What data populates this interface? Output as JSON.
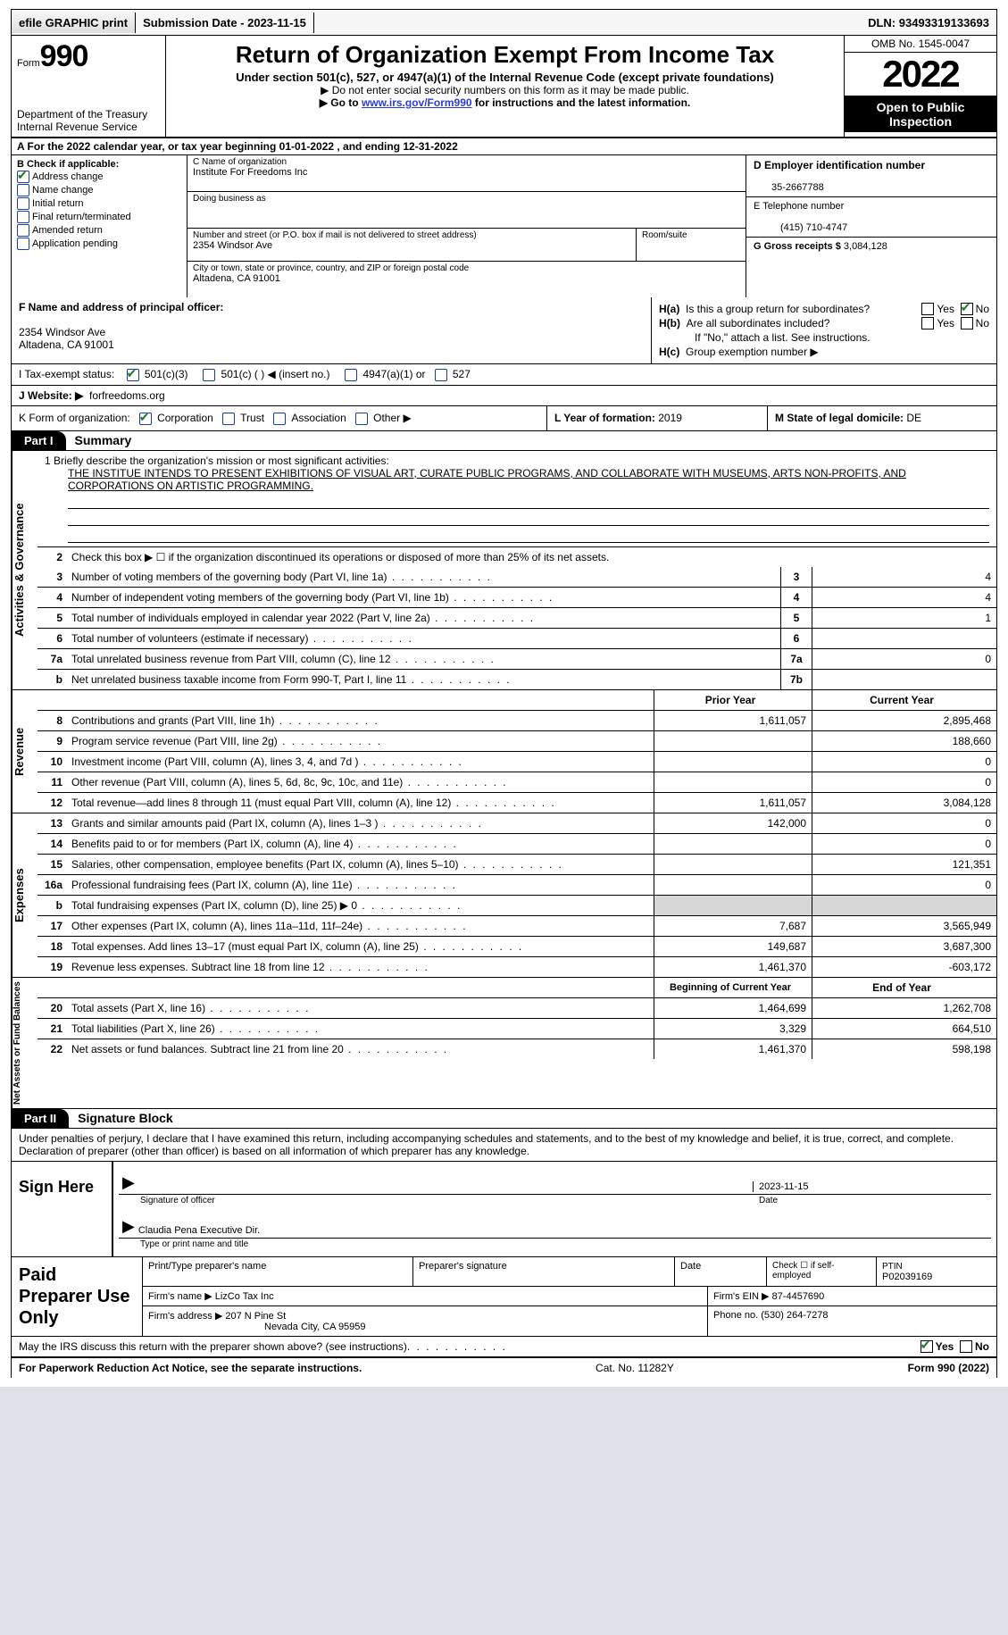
{
  "topbar": {
    "efile": "efile GRAPHIC print",
    "submission_label": "Submission Date - ",
    "submission_date": "2023-11-15",
    "dln_label": "DLN: ",
    "dln": "93493319133693"
  },
  "header": {
    "form_label": "Form",
    "form_no": "990",
    "dept": "Department of the Treasury",
    "irs": "Internal Revenue Service",
    "title": "Return of Organization Exempt From Income Tax",
    "sub1": "Under section 501(c), 527, or 4947(a)(1) of the Internal Revenue Code (except private foundations)",
    "sub2": "▶ Do not enter social security numbers on this form as it may be made public.",
    "sub3_pre": "▶ Go to ",
    "sub3_link": "www.irs.gov/Form990",
    "sub3_post": " for instructions and the latest information.",
    "omb": "OMB No. 1545-0047",
    "year": "2022",
    "inspect": "Open to Public Inspection"
  },
  "row_a": {
    "text": "A For the 2022 calendar year, or tax year beginning 01-01-2022    , and ending 12-31-2022"
  },
  "col_b": {
    "label": "B Check if applicable:",
    "items": [
      {
        "txt": "Address change",
        "checked": true
      },
      {
        "txt": "Name change",
        "checked": false
      },
      {
        "txt": "Initial return",
        "checked": false
      },
      {
        "txt": "Final return/terminated",
        "checked": false
      },
      {
        "txt": "Amended return",
        "checked": false
      },
      {
        "txt": "Application pending",
        "checked": false
      }
    ]
  },
  "col_c": {
    "name_lab": "C Name of organization",
    "name": "Institute For Freedoms Inc",
    "dba_lab": "Doing business as",
    "dba": "",
    "addr_lab": "Number and street (or P.O. box if mail is not delivered to street address)",
    "addr": "2354 Windsor Ave",
    "room_lab": "Room/suite",
    "city_lab": "City or town, state or province, country, and ZIP or foreign postal code",
    "city": "Altadena, CA  91001"
  },
  "col_d": {
    "lab": "D Employer identification number",
    "val": "35-2667788"
  },
  "col_e": {
    "lab": "E Telephone number",
    "val": "(415) 710-4747"
  },
  "col_g": {
    "lab": "G Gross receipts $ ",
    "val": "3,084,128"
  },
  "f": {
    "lab": "F Name and address of principal officer:",
    "addr1": "2354 Windsor Ave",
    "addr2": "Altadena, CA  91001"
  },
  "h": {
    "a_lab": "Is this a group return for subordinates?",
    "a_yes": false,
    "a_no": true,
    "b_lab": "Are all subordinates included?",
    "note": "If \"No,\" attach a list. See instructions.",
    "c_lab": "Group exemption number ▶"
  },
  "i": {
    "lab": "I   Tax-exempt status:",
    "c3": true,
    "c3_txt": "501(c)(3)",
    "c_txt": "501(c) (   ) ◀ (insert no.)",
    "a1_txt": "4947(a)(1) or",
    "s527": "527"
  },
  "j": {
    "lab": "J   Website: ▶",
    "val": "forfreedoms.org"
  },
  "k": {
    "lab": "K Form of organization:",
    "corp": true,
    "corp_txt": "Corporation",
    "trust_txt": "Trust",
    "assoc_txt": "Association",
    "other_txt": "Other ▶"
  },
  "l": {
    "lab": "L Year of formation: ",
    "val": "2019"
  },
  "m": {
    "lab": "M State of legal domicile: ",
    "val": "DE"
  },
  "part1": {
    "tab": "Part I",
    "title": "Summary"
  },
  "mission": {
    "lab": "1  Briefly describe the organization's mission or most significant activities:",
    "txt": "THE INSTITUE INTENDS TO PRESENT EXHIBITIONS OF VISUAL ART, CURATE PUBLIC PROGRAMS, AND COLLABORATE WITH MUSEUMS, ARTS NON-PROFITS, AND CORPORATIONS ON ARTISTIC PROGRAMMING."
  },
  "gov_rows": [
    {
      "n": "2",
      "d": "Check this box ▶ ☐  if the organization discontinued its operations or disposed of more than 25% of its net assets.",
      "box": "",
      "v": ""
    },
    {
      "n": "3",
      "d": "Number of voting members of the governing body (Part VI, line 1a)",
      "box": "3",
      "v": "4"
    },
    {
      "n": "4",
      "d": "Number of independent voting members of the governing body (Part VI, line 1b)",
      "box": "4",
      "v": "4"
    },
    {
      "n": "5",
      "d": "Total number of individuals employed in calendar year 2022 (Part V, line 2a)",
      "box": "5",
      "v": "1"
    },
    {
      "n": "6",
      "d": "Total number of volunteers (estimate if necessary)",
      "box": "6",
      "v": ""
    },
    {
      "n": "7a",
      "d": "Total unrelated business revenue from Part VIII, column (C), line 12",
      "box": "7a",
      "v": "0"
    },
    {
      "n": "b",
      "d": "Net unrelated business taxable income from Form 990-T, Part I, line 11",
      "box": "7b",
      "v": ""
    }
  ],
  "rev_hdr": {
    "py": "Prior Year",
    "cy": "Current Year"
  },
  "rev_rows": [
    {
      "n": "8",
      "d": "Contributions and grants (Part VIII, line 1h)",
      "py": "1,611,057",
      "cy": "2,895,468"
    },
    {
      "n": "9",
      "d": "Program service revenue (Part VIII, line 2g)",
      "py": "",
      "cy": "188,660"
    },
    {
      "n": "10",
      "d": "Investment income (Part VIII, column (A), lines 3, 4, and 7d )",
      "py": "",
      "cy": "0"
    },
    {
      "n": "11",
      "d": "Other revenue (Part VIII, column (A), lines 5, 6d, 8c, 9c, 10c, and 11e)",
      "py": "",
      "cy": "0"
    },
    {
      "n": "12",
      "d": "Total revenue—add lines 8 through 11 (must equal Part VIII, column (A), line 12)",
      "py": "1,611,057",
      "cy": "3,084,128"
    }
  ],
  "exp_rows": [
    {
      "n": "13",
      "d": "Grants and similar amounts paid (Part IX, column (A), lines 1–3 )",
      "py": "142,000",
      "cy": "0"
    },
    {
      "n": "14",
      "d": "Benefits paid to or for members (Part IX, column (A), line 4)",
      "py": "",
      "cy": "0"
    },
    {
      "n": "15",
      "d": "Salaries, other compensation, employee benefits (Part IX, column (A), lines 5–10)",
      "py": "",
      "cy": "121,351"
    },
    {
      "n": "16a",
      "d": "Professional fundraising fees (Part IX, column (A), line 11e)",
      "py": "",
      "cy": "0"
    },
    {
      "n": "b",
      "d": "Total fundraising expenses (Part IX, column (D), line 25) ▶ 0",
      "py": "shade",
      "cy": "shade"
    },
    {
      "n": "17",
      "d": "Other expenses (Part IX, column (A), lines 11a–11d, 11f–24e)",
      "py": "7,687",
      "cy": "3,565,949"
    },
    {
      "n": "18",
      "d": "Total expenses. Add lines 13–17 (must equal Part IX, column (A), line 25)",
      "py": "149,687",
      "cy": "3,687,300"
    },
    {
      "n": "19",
      "d": "Revenue less expenses. Subtract line 18 from line 12",
      "py": "1,461,370",
      "cy": "-603,172"
    }
  ],
  "na_hdr": {
    "py": "Beginning of Current Year",
    "cy": "End of Year"
  },
  "na_rows": [
    {
      "n": "20",
      "d": "Total assets (Part X, line 16)",
      "py": "1,464,699",
      "cy": "1,262,708"
    },
    {
      "n": "21",
      "d": "Total liabilities (Part X, line 26)",
      "py": "3,329",
      "cy": "664,510"
    },
    {
      "n": "22",
      "d": "Net assets or fund balances. Subtract line 21 from line 20",
      "py": "1,461,370",
      "cy": "598,198"
    }
  ],
  "vtabs": {
    "gov": "Activities & Governance",
    "rev": "Revenue",
    "exp": "Expenses",
    "na": "Net Assets or Fund Balances"
  },
  "part2": {
    "tab": "Part II",
    "title": "Signature Block"
  },
  "sig_intro": "Under penalties of perjury, I declare that I have examined this return, including accompanying schedules and statements, and to the best of my knowledge and belief, it is true, correct, and complete. Declaration of preparer (other than officer) is based on all information of which preparer has any knowledge.",
  "sign": {
    "here": "Sign Here",
    "sig_lab": "Signature of officer",
    "date_lab": "Date",
    "date": "2023-11-15",
    "name": "Claudia Pena  Executive Dir.",
    "name_lab": "Type or print name and title"
  },
  "prep": {
    "title": "Paid Preparer Use Only",
    "r1": {
      "a": "Print/Type preparer's name",
      "b": "Preparer's signature",
      "c": "Date",
      "d_lab": "Check ☐ if self-employed",
      "e_lab": "PTIN",
      "e": "P02039169"
    },
    "r2": {
      "a": "Firm's name   ▶ ",
      "av": "LizCo Tax Inc",
      "b": "Firm's EIN ▶ ",
      "bv": "87-4457690"
    },
    "r3": {
      "a": "Firm's address ▶ ",
      "av1": "207 N Pine St",
      "av2": "Nevada City, CA  95959",
      "b": "Phone no. ",
      "bv": "(530) 264-7278"
    }
  },
  "discuss": {
    "txt": "May the IRS discuss this return with the preparer shown above? (see instructions)",
    "yes": true
  },
  "footer": {
    "left": "For Paperwork Reduction Act Notice, see the separate instructions.",
    "mid": "Cat. No. 11282Y",
    "right": "Form 990 (2022)"
  },
  "colors": {
    "link": "#2a3cde",
    "check_border": "#1a3ea8",
    "check_mark": "#1a7a2a",
    "shade": "#d7d7d7",
    "page_bg": "#dde3e8"
  }
}
